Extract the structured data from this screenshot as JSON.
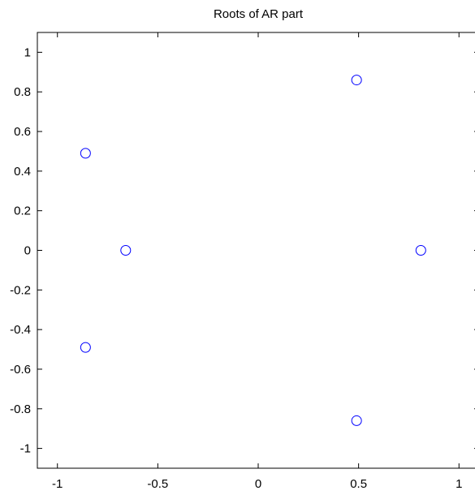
{
  "chart_data": {
    "type": "scatter",
    "title": "Roots of AR part",
    "xlabel": "",
    "ylabel": "",
    "xlim": [
      -1.1,
      1.1
    ],
    "ylim": [
      -1.1,
      1.1
    ],
    "xticks": [
      -1,
      -0.5,
      0,
      0.5,
      1
    ],
    "xtick_labels": [
      "-1",
      "-0.5",
      "0",
      "0.5",
      "1"
    ],
    "yticks": [
      1,
      0.8,
      0.6,
      0.4,
      0.2,
      0,
      -0.2,
      -0.4,
      -0.6,
      -0.8,
      -1
    ],
    "ytick_labels": [
      "1",
      "0.8",
      "0.6",
      "0.4",
      "0.2",
      "0",
      "-0.2",
      "-0.4",
      "-0.6",
      "-0.8",
      "-1"
    ],
    "grid": false,
    "marker": "circle-open",
    "marker_color": "#0000ff",
    "points": [
      {
        "x": -0.86,
        "y": 0.49
      },
      {
        "x": -0.66,
        "y": 0.0
      },
      {
        "x": -0.86,
        "y": -0.49
      },
      {
        "x": 0.49,
        "y": 0.86
      },
      {
        "x": 0.81,
        "y": 0.0
      },
      {
        "x": 0.49,
        "y": -0.86
      }
    ]
  }
}
